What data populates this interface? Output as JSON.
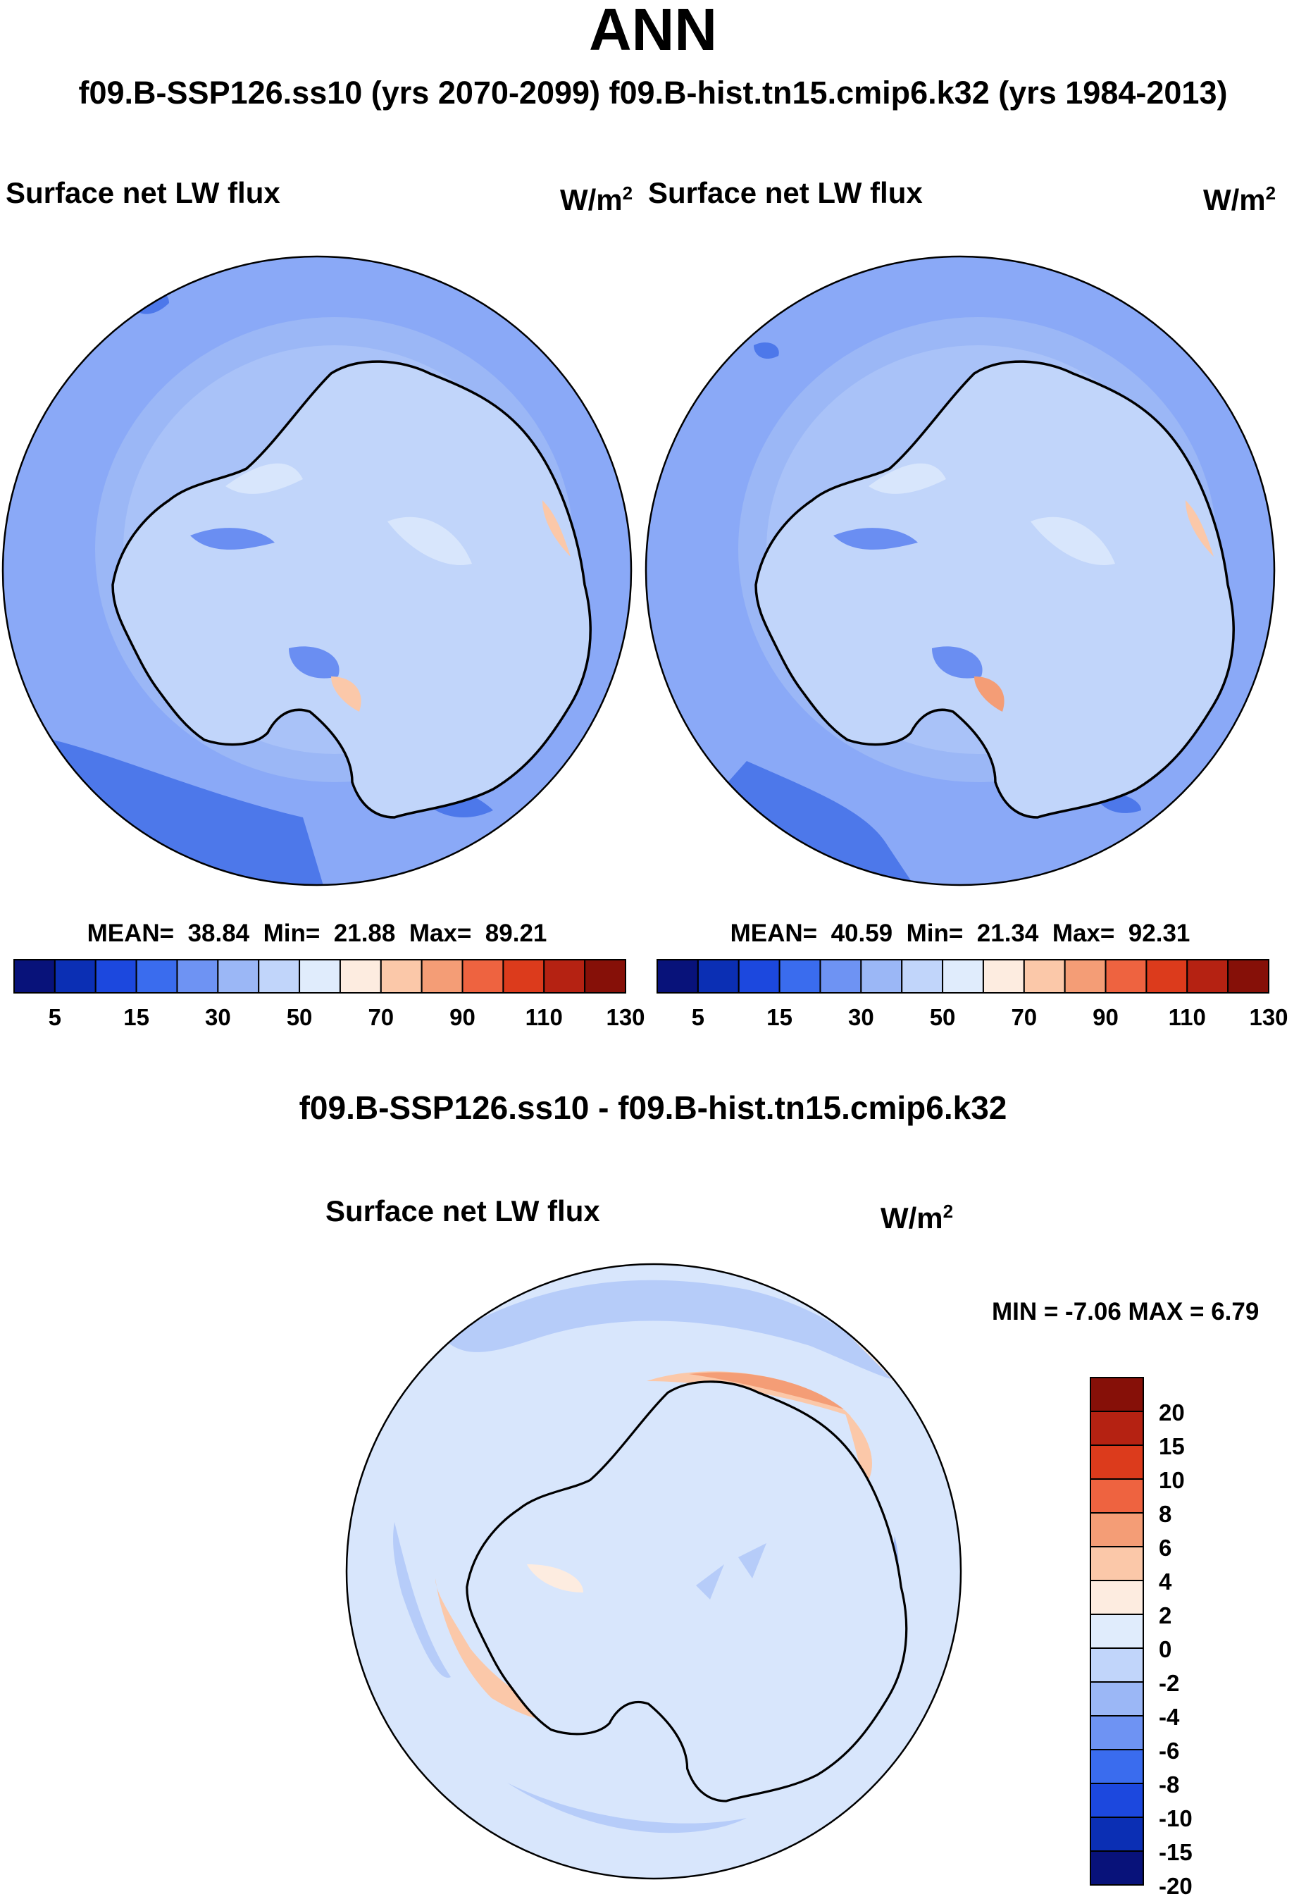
{
  "title": "ANN",
  "subtitle": "f09.B-SSP126.ss10 (yrs 2070-2099)  f09.B-hist.tn15.cmip6.k32 (yrs 1984-2013)",
  "panels": [
    {
      "field_label": "Surface net LW flux",
      "units": "W/m",
      "units_exp": "2",
      "stats": {
        "mean_label": "MEAN=",
        "mean": "38.84",
        "min_label": "Min=",
        "min": "21.88",
        "max_label": "Max=",
        "max": "89.21"
      }
    },
    {
      "field_label": "Surface net LW flux",
      "units": "W/m",
      "units_exp": "2",
      "stats": {
        "mean_label": "MEAN=",
        "mean": "40.59",
        "min_label": "Min=",
        "min": "21.34",
        "max_label": "Max=",
        "max": "92.31"
      }
    }
  ],
  "abs_colorbar": {
    "tick_labels": [
      "5",
      "15",
      "30",
      "50",
      "70",
      "90",
      "110",
      "130"
    ],
    "colors": [
      "#08127a",
      "#0b2fb4",
      "#1c48de",
      "#3a6cee",
      "#6e93f3",
      "#9bb7f6",
      "#c1d5fa",
      "#e0ecfc",
      "#fdece0",
      "#fbc8a9",
      "#f49d76",
      "#ee6340",
      "#dc3b1c",
      "#b52212",
      "#861008"
    ]
  },
  "difference": {
    "title": "f09.B-SSP126.ss10 - f09.B-hist.tn15.cmip6.k32",
    "field_label": "Surface net LW flux",
    "units": "W/m",
    "units_exp": "2",
    "minmax": "MIN =  -7.06 MAX =   6.79",
    "colorbar": {
      "tick_labels": [
        "20",
        "15",
        "10",
        "8",
        "6",
        "4",
        "2",
        "0",
        "-2",
        "-4",
        "-6",
        "-8",
        "-10",
        "-15",
        "-20"
      ],
      "colors": [
        "#861008",
        "#b52212",
        "#dc3b1c",
        "#ee6340",
        "#f49d76",
        "#fbc8a9",
        "#fdece0",
        "#e0ecfc",
        "#c1d5fa",
        "#9bb7f6",
        "#6e93f3",
        "#3a6cee",
        "#1c48de",
        "#0b2fb4",
        "#08127a"
      ]
    }
  },
  "map_colors": {
    "ocean_mid": "#8aa9f7",
    "ocean_dark": "#6a8ef2",
    "ocean_darker": "#4d78ea",
    "land_light": "#c1d5fa",
    "land_lighter": "#d8e6fc",
    "warm_light": "#fdece0",
    "warm": "#fbc8a9",
    "diff_base": "#d8e6fc",
    "diff_blue": "#b6ccf9"
  }
}
